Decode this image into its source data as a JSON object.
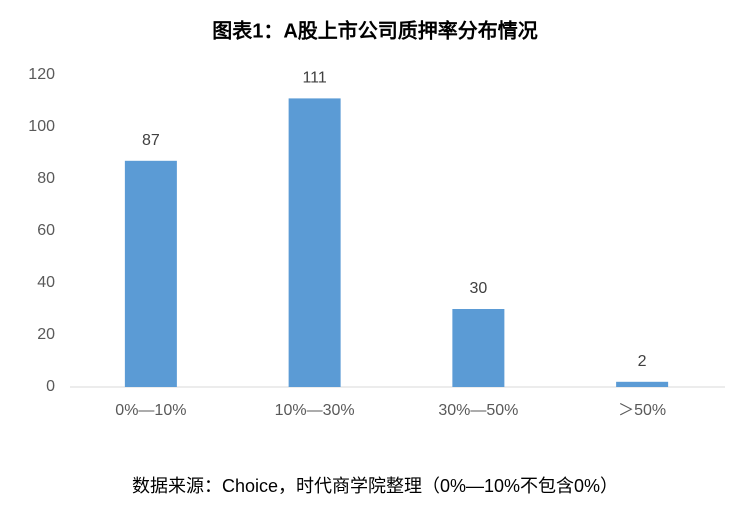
{
  "chart_data": {
    "type": "bar",
    "title": "图表1：A股上市公司质押率分布情况",
    "categories": [
      "0%—10%",
      "10%—30%",
      "30%—50%",
      "＞50%"
    ],
    "values": [
      87,
      111,
      30,
      2
    ],
    "color": "#5b9bd5",
    "ylim": [
      0,
      120
    ],
    "yticks": [
      0,
      20,
      40,
      60,
      80,
      100,
      120
    ],
    "grid": false,
    "data_labels": true,
    "source": "数据来源：Choice，时代商学院整理（0%—10%不包含0%）"
  }
}
